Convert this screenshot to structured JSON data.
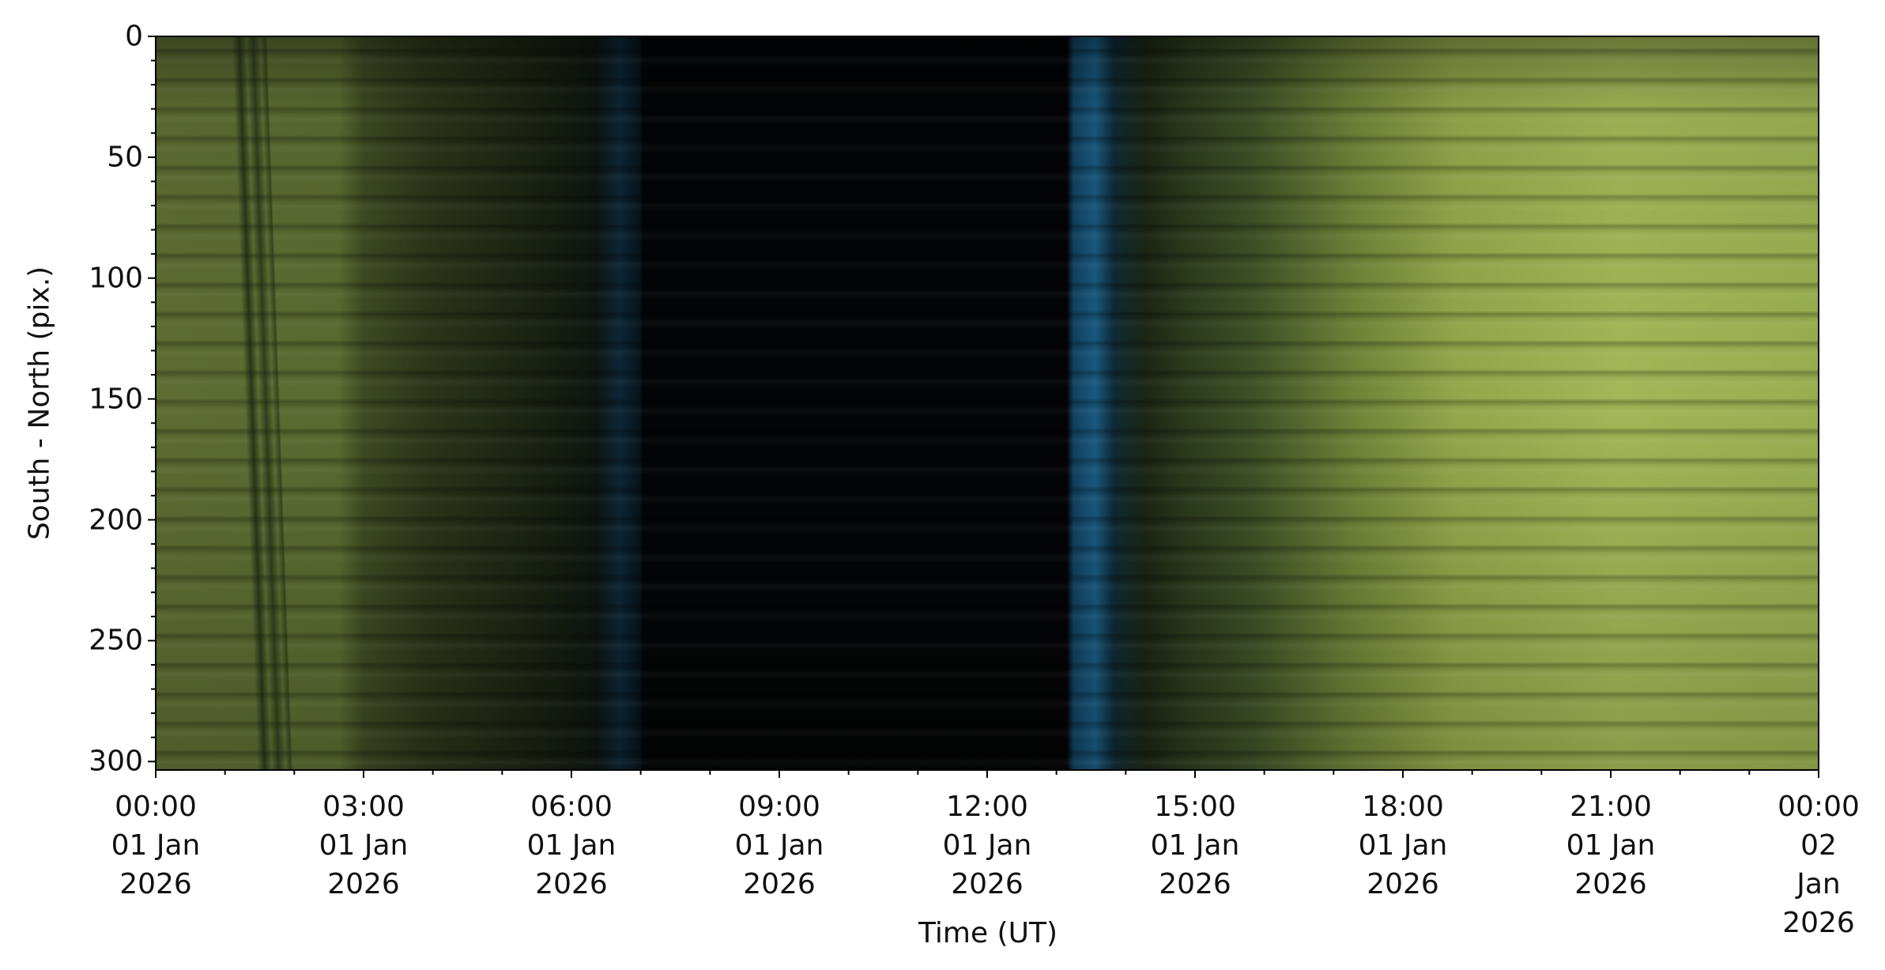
{
  "chart_data": {
    "type": "image",
    "xlabel": "Time (UT)",
    "ylabel": "South - North (pix.)",
    "xlim": [
      "2026-01-01T00:00",
      "2026-01-02T00:00"
    ],
    "xticks": [
      {
        "value": "2026-01-01T00:00",
        "label": "00:00\n01 Jan\n2026"
      },
      {
        "value": "2026-01-01T03:00",
        "label": "03:00\n01 Jan\n2026"
      },
      {
        "value": "2026-01-01T06:00",
        "label": "06:00\n01 Jan\n2026"
      },
      {
        "value": "2026-01-01T09:00",
        "label": "09:00\n01 Jan\n2026"
      },
      {
        "value": "2026-01-01T12:00",
        "label": "12:00\n01 Jan\n2026"
      },
      {
        "value": "2026-01-01T15:00",
        "label": "15:00\n01 Jan\n2026"
      },
      {
        "value": "2026-01-01T18:00",
        "label": "18:00\n01 Jan\n2026"
      },
      {
        "value": "2026-01-01T21:00",
        "label": "21:00\n01 Jan\n2026"
      },
      {
        "value": "2026-01-02T00:00",
        "label": "00:00\n02 Jan\n2026"
      }
    ],
    "x_minor_ticks": [
      "2026-01-01T01:00",
      "2026-01-01T02:00",
      "2026-01-01T04:00",
      "2026-01-01T05:00",
      "2026-01-01T07:00",
      "2026-01-01T08:00",
      "2026-01-01T10:00",
      "2026-01-01T11:00",
      "2026-01-01T13:00",
      "2026-01-01T14:00",
      "2026-01-01T16:00",
      "2026-01-01T17:00",
      "2026-01-01T19:00",
      "2026-01-01T20:00",
      "2026-01-01T22:00",
      "2026-01-01T23:00"
    ],
    "ylim": [
      0,
      303.5
    ],
    "y_inverted": true,
    "yticks": [
      0,
      50,
      100,
      150,
      200,
      250,
      300
    ],
    "y_minor_ticks": [
      10,
      20,
      30,
      40,
      60,
      70,
      80,
      90,
      110,
      120,
      130,
      140,
      160,
      170,
      180,
      190,
      210,
      220,
      230,
      240,
      260,
      270,
      280,
      290
    ]
  }
}
